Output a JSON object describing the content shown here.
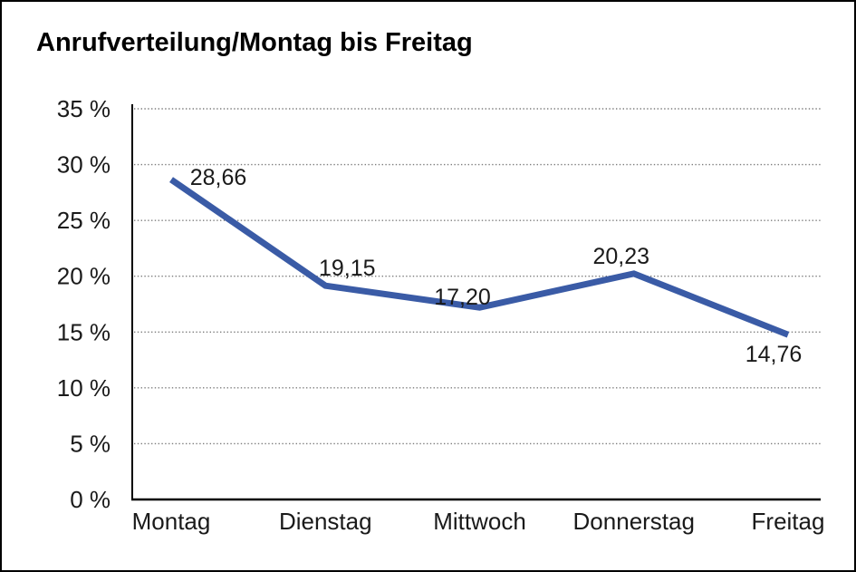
{
  "window": {
    "background_color": "#ffffff",
    "border_color": "#000000"
  },
  "chart": {
    "title": "Anrufverteilung/Montag bis Freitag"
  },
  "chart_data": {
    "type": "line",
    "title": "Anrufverteilung/Montag bis Freitag",
    "categories": [
      "Montag",
      "Dienstag",
      "Mittwoch",
      "Donnerstag",
      "Freitag"
    ],
    "values": [
      28.66,
      19.15,
      17.2,
      20.23,
      14.76
    ],
    "value_labels": [
      "28,66",
      "19,15",
      "17,20",
      "20,23",
      "14,76"
    ],
    "xlabel": "",
    "ylabel": "",
    "ylim": [
      0,
      35
    ],
    "y_tick_step": 5,
    "y_tick_labels": [
      "0 %",
      "5 %",
      "10 %",
      "15 %",
      "20 %",
      "25 %",
      "30 %",
      "35 %"
    ],
    "grid": "horizontal-dotted",
    "legend_position": "none",
    "line_color": "#3A5BA6",
    "grid_color": "#7D7D7D",
    "axis_color": "#000000",
    "text_color": "#1A1A1A"
  }
}
